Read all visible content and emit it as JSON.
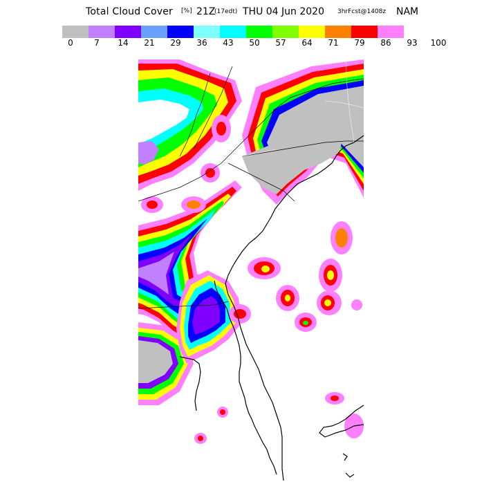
{
  "title": {
    "main": "Total Cloud Cover",
    "units": "[%]",
    "valid_time": "21Z",
    "local_time": "(17edt)",
    "date": "THU 04 Jun 2020",
    "forecast": "3hrFcst@1408z",
    "model": "NAM"
  },
  "legend": {
    "colors": [
      "#c0c0c0",
      "#c080ff",
      "#8000ff",
      "#6aa0ff",
      "#0000ff",
      "#80ffff",
      "#00ffff",
      "#00ff00",
      "#80ff00",
      "#ffff00",
      "#ff8000",
      "#ff0000",
      "#ff80ff"
    ],
    "ticks": [
      "0",
      "7",
      "14",
      "21",
      "29",
      "36",
      "43",
      "50",
      "57",
      "64",
      "71",
      "79",
      "86",
      "93",
      "100"
    ]
  },
  "map": {
    "region": "Southeast US coast (Mid-Atlantic to Florida)",
    "land_clear_color": "#ffffff",
    "overcast_color": "#c0c0c0",
    "outline_color": "#000000"
  }
}
